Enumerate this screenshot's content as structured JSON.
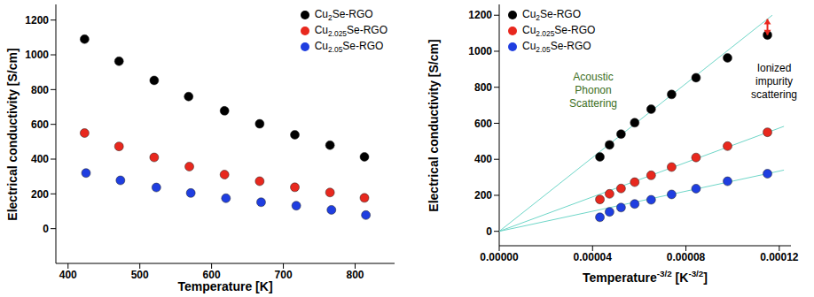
{
  "chart_data": [
    {
      "type": "scatter",
      "xlabel": "Temperature [K]",
      "ylabel": "Electrical conductivity [S/cm]",
      "xlim": [
        383,
        855
      ],
      "ylim": [
        -200,
        1290
      ],
      "xticks": [
        400,
        500,
        600,
        700,
        800
      ],
      "yticks": [
        0,
        200,
        400,
        600,
        800,
        1000,
        1200
      ],
      "legend": "upper right",
      "series": [
        {
          "name": "Cu2Se-RGO",
          "color": "#000000",
          "marker": "circle",
          "x": [
            423,
            471,
            520,
            568,
            618,
            667,
            716,
            765,
            813
          ],
          "values": [
            1090,
            963,
            853,
            760,
            678,
            603,
            540,
            480,
            413
          ]
        },
        {
          "name": "Cu2.025Se-RGO",
          "color": "#e8281e",
          "marker": "circle",
          "x": [
            423,
            471,
            520,
            569,
            618,
            667,
            716,
            765,
            813
          ],
          "values": [
            550,
            473,
            410,
            357,
            311,
            273,
            238,
            208,
            177
          ]
        },
        {
          "name": "Cu2.05Se-RGO",
          "color": "#1f3ee0",
          "marker": "circle",
          "x": [
            425,
            473,
            523,
            571,
            620,
            669,
            718,
            767,
            815
          ],
          "values": [
            320,
            278,
            237,
            205,
            175,
            152,
            132,
            108,
            78
          ]
        }
      ]
    },
    {
      "type": "scatter",
      "xlabel": "Temperature-3/2 [K-3/2]",
      "ylabel": "Electrical conductivity [S/cm]",
      "xlim": [
        0,
        0.000125
      ],
      "ylim": [
        -80,
        1260
      ],
      "xticks": [
        {
          "value": 0,
          "label": "0.00000"
        },
        4e-05,
        8e-05,
        0.00012
      ],
      "yticks": [
        0,
        200,
        400,
        600,
        800,
        1000,
        1200
      ],
      "legend": "upper left",
      "series": [
        {
          "name": "Cu2Se-RGO",
          "color": "#000000",
          "marker": "circle",
          "x": [
            0.00011494,
            9.783e-05,
            8.433e-05,
            7.387e-05,
            6.509e-05,
            5.805e-05,
            5.22e-05,
            4.726e-05,
            4.314e-05
          ],
          "values": [
            1090,
            963,
            853,
            760,
            678,
            603,
            540,
            480,
            413
          ]
        },
        {
          "name": "Cu2.025Se-RGO",
          "color": "#e8281e",
          "marker": "circle",
          "x": [
            0.00011494,
            9.783e-05,
            8.433e-05,
            7.387e-05,
            6.509e-05,
            5.805e-05,
            5.22e-05,
            4.726e-05,
            4.314e-05
          ],
          "values": [
            550,
            473,
            410,
            357,
            311,
            273,
            238,
            208,
            177
          ]
        },
        {
          "name": "Cu2.05Se-RGO",
          "color": "#1f3ee0",
          "marker": "circle",
          "x": [
            0.00011494,
            9.783e-05,
            8.433e-05,
            7.387e-05,
            6.509e-05,
            5.805e-05,
            5.22e-05,
            4.726e-05,
            4.314e-05
          ],
          "values": [
            320,
            278,
            237,
            205,
            175,
            152,
            132,
            108,
            78
          ]
        }
      ],
      "fits": [
        {
          "color": "#6fd6c8",
          "x": [
            0,
            0.000117
          ],
          "values": [
            0,
            1200
          ]
        },
        {
          "color": "#6fd6c8",
          "x": [
            0,
            0.000122
          ],
          "values": [
            0,
            583
          ]
        },
        {
          "color": "#6fd6c8",
          "x": [
            0,
            0.000122
          ],
          "values": [
            0,
            340
          ]
        }
      ],
      "annotations": [
        {
          "text": "Acoustic Phonon Scattering",
          "color": "#3c6e1c"
        },
        {
          "text": "Ionized impurity scattering",
          "color": "#000000"
        }
      ]
    }
  ]
}
